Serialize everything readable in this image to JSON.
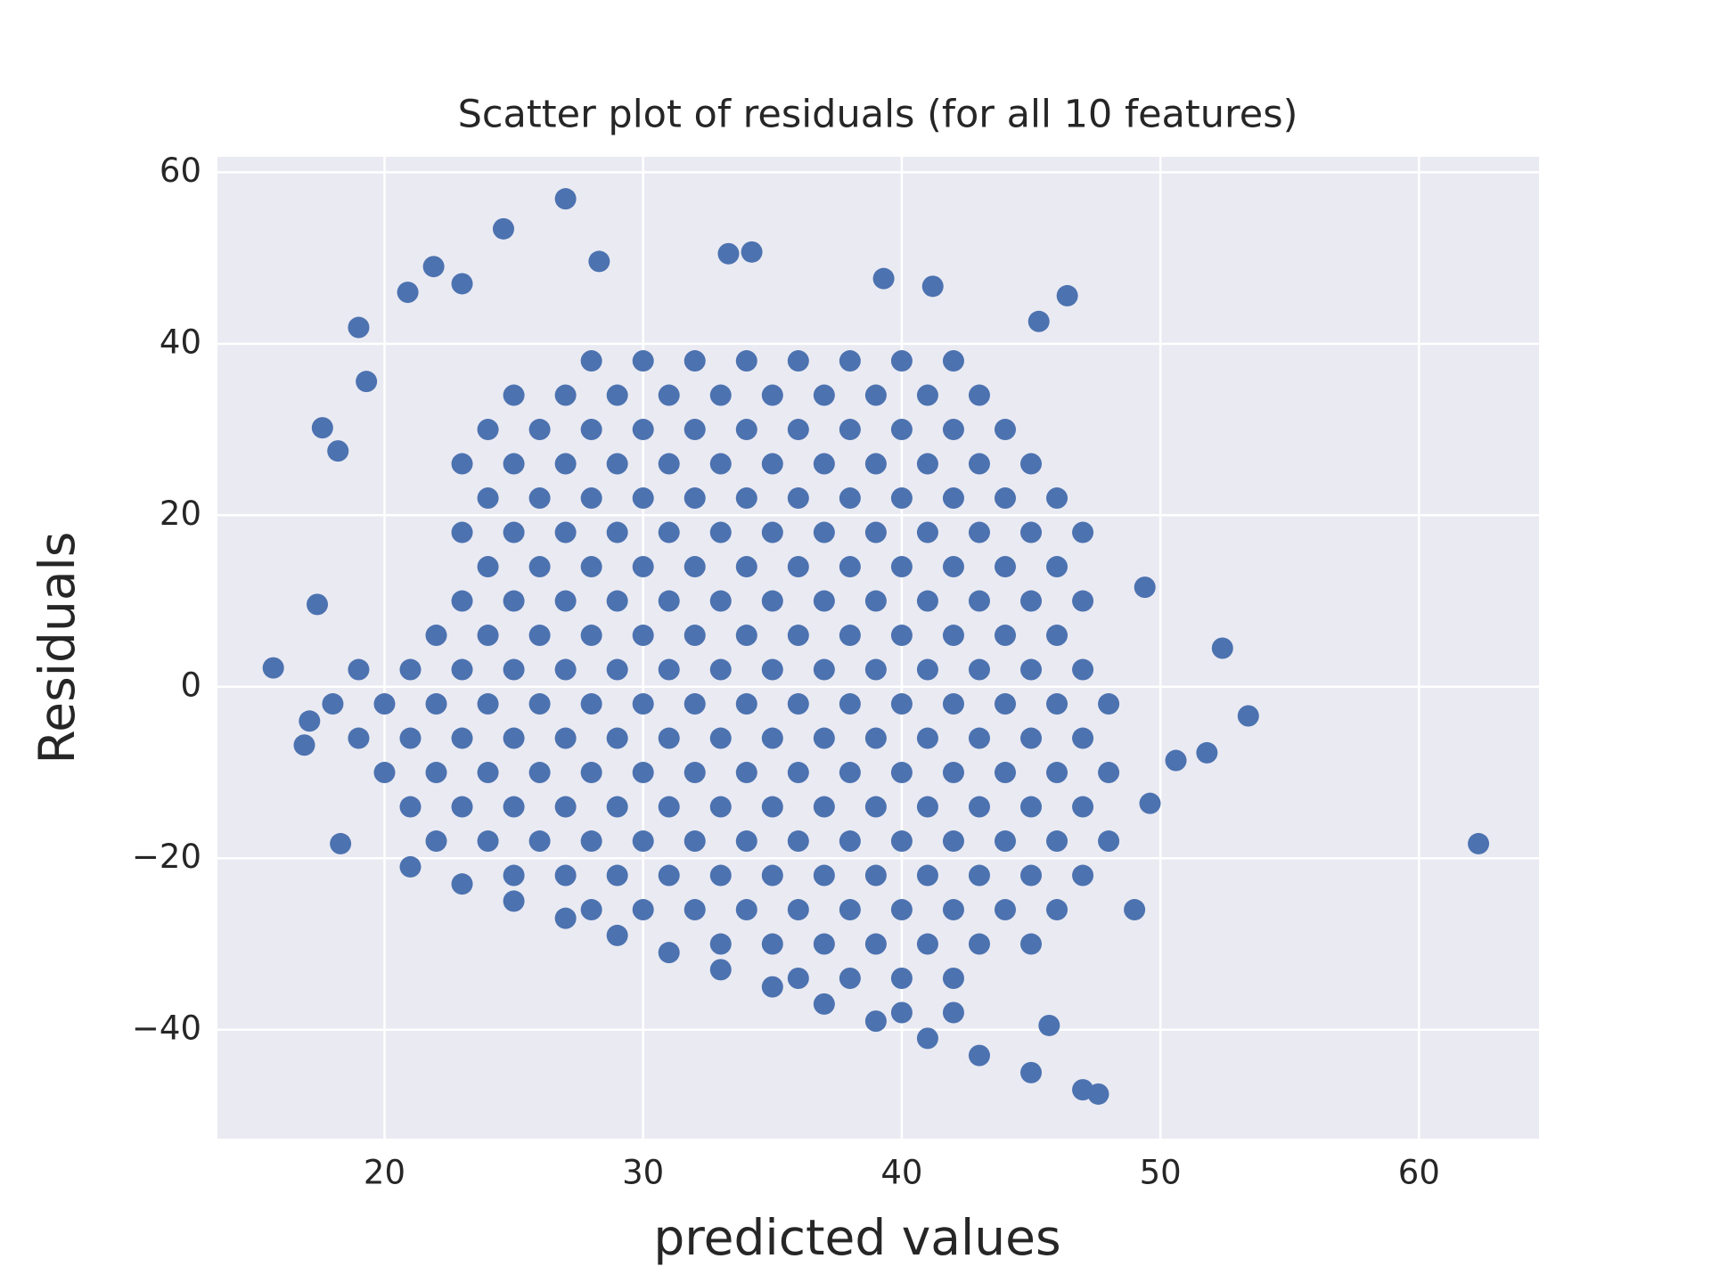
{
  "chart_data": {
    "type": "scatter",
    "title": "Scatter plot of residuals (for all 10 features)",
    "x_label": "predicted values",
    "y_label": "Residuals",
    "color": "#4c72b0",
    "grid": true,
    "xlim": [
      13.54,
      64.64
    ],
    "ylim": [
      -52.7,
      61.8
    ],
    "xticks": [
      20,
      30,
      40,
      50,
      60
    ],
    "yticks": [
      {
        "value": -40,
        "label": "−40"
      },
      {
        "value": -20,
        "label": "−20"
      },
      0,
      20,
      40,
      60
    ],
    "x": [
      28,
      30,
      32,
      34,
      36,
      38,
      40,
      42,
      25,
      27,
      29,
      31,
      33,
      35,
      37,
      39,
      41,
      43,
      24,
      26,
      28,
      30,
      32,
      34,
      36,
      38,
      40,
      42,
      44,
      23,
      25,
      27,
      29,
      31,
      33,
      35,
      37,
      39,
      41,
      43,
      45,
      24,
      26,
      28,
      30,
      32,
      34,
      36,
      38,
      40,
      42,
      44,
      46,
      23,
      25,
      27,
      29,
      31,
      33,
      35,
      37,
      39,
      41,
      43,
      45,
      47,
      24,
      26,
      28,
      30,
      32,
      34,
      36,
      38,
      40,
      42,
      44,
      46,
      23,
      25,
      27,
      29,
      31,
      33,
      35,
      37,
      39,
      41,
      43,
      45,
      47,
      22,
      24,
      26,
      28,
      30,
      32,
      34,
      36,
      38,
      40,
      42,
      44,
      46,
      19,
      21,
      23,
      25,
      27,
      29,
      31,
      33,
      35,
      37,
      39,
      41,
      43,
      45,
      47,
      18,
      20,
      22,
      24,
      26,
      28,
      30,
      32,
      34,
      36,
      38,
      40,
      42,
      44,
      46,
      48,
      19,
      21,
      23,
      25,
      27,
      29,
      31,
      33,
      35,
      37,
      39,
      41,
      43,
      45,
      47,
      20,
      22,
      24,
      26,
      28,
      30,
      32,
      34,
      36,
      38,
      40,
      42,
      44,
      46,
      48,
      21,
      23,
      25,
      27,
      29,
      31,
      33,
      35,
      37,
      39,
      41,
      43,
      45,
      47,
      22,
      24,
      26,
      28,
      30,
      32,
      34,
      36,
      38,
      40,
      42,
      44,
      46,
      48,
      25,
      27,
      29,
      31,
      33,
      35,
      37,
      39,
      41,
      43,
      45,
      47,
      28,
      30,
      32,
      34,
      36,
      38,
      40,
      42,
      44,
      46,
      33,
      35,
      37,
      39,
      41,
      43,
      45,
      36,
      38,
      40,
      42,
      40,
      42,
      21,
      23,
      25,
      27,
      29,
      31,
      33,
      35,
      37,
      39,
      41,
      43,
      45,
      47,
      15.7,
      17.4,
      17.6,
      18.2,
      19,
      19.3,
      20.9,
      21.9,
      23,
      24.6,
      27,
      28.3,
      16.9,
      18.3,
      17.1,
      46.4,
      45.3,
      49.4,
      52.4,
      53.4,
      51.8,
      50.6,
      49.6,
      49,
      62.3,
      47.6,
      45.7,
      33.3,
      34.2,
      39.3,
      41.2
    ],
    "values": [
      38,
      38,
      38,
      38,
      38,
      38,
      38,
      38,
      34,
      34,
      34,
      34,
      34,
      34,
      34,
      34,
      34,
      34,
      30,
      30,
      30,
      30,
      30,
      30,
      30,
      30,
      30,
      30,
      30,
      26,
      26,
      26,
      26,
      26,
      26,
      26,
      26,
      26,
      26,
      26,
      26,
      22,
      22,
      22,
      22,
      22,
      22,
      22,
      22,
      22,
      22,
      22,
      22,
      18,
      18,
      18,
      18,
      18,
      18,
      18,
      18,
      18,
      18,
      18,
      18,
      18,
      14,
      14,
      14,
      14,
      14,
      14,
      14,
      14,
      14,
      14,
      14,
      14,
      10,
      10,
      10,
      10,
      10,
      10,
      10,
      10,
      10,
      10,
      10,
      10,
      10,
      6,
      6,
      6,
      6,
      6,
      6,
      6,
      6,
      6,
      6,
      6,
      6,
      6,
      2,
      2,
      2,
      2,
      2,
      2,
      2,
      2,
      2,
      2,
      2,
      2,
      2,
      2,
      2,
      -2,
      -2,
      -2,
      -2,
      -2,
      -2,
      -2,
      -2,
      -2,
      -2,
      -2,
      -2,
      -2,
      -2,
      -2,
      -2,
      -6,
      -6,
      -6,
      -6,
      -6,
      -6,
      -6,
      -6,
      -6,
      -6,
      -6,
      -6,
      -6,
      -6,
      -6,
      -10,
      -10,
      -10,
      -10,
      -10,
      -10,
      -10,
      -10,
      -10,
      -10,
      -10,
      -10,
      -10,
      -10,
      -10,
      -14,
      -14,
      -14,
      -14,
      -14,
      -14,
      -14,
      -14,
      -14,
      -14,
      -14,
      -14,
      -14,
      -14,
      -18,
      -18,
      -18,
      -18,
      -18,
      -18,
      -18,
      -18,
      -18,
      -18,
      -18,
      -18,
      -18,
      -18,
      -22,
      -22,
      -22,
      -22,
      -22,
      -22,
      -22,
      -22,
      -22,
      -22,
      -22,
      -22,
      -26,
      -26,
      -26,
      -26,
      -26,
      -26,
      -26,
      -26,
      -26,
      -26,
      -30,
      -30,
      -30,
      -30,
      -30,
      -30,
      -30,
      -34,
      -34,
      -34,
      -34,
      -38,
      -38,
      -21,
      -23,
      -25,
      -27,
      -29,
      -31,
      -33,
      -35,
      -37,
      -39,
      -41,
      -43,
      -45,
      -47,
      2.2,
      9.6,
      30.2,
      27.5,
      41.9,
      35.6,
      46,
      49,
      47,
      53.4,
      56.9,
      49.6,
      -6.8,
      -18.3,
      -4,
      45.6,
      42.6,
      11.6,
      4.5,
      -3.4,
      -7.7,
      -8.6,
      -13.6,
      -26,
      -18.3,
      -47.5,
      -39.5,
      50.5,
      50.7,
      47.6,
      46.7
    ]
  }
}
